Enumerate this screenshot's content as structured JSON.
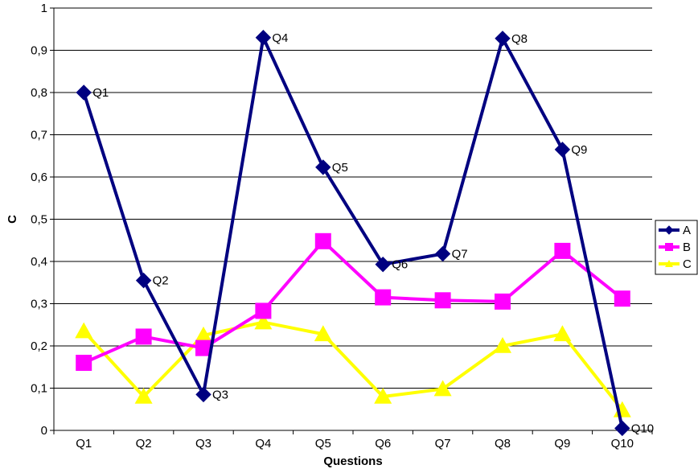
{
  "chart_data": {
    "type": "line",
    "title": "",
    "xlabel": "Questions",
    "ylabel": "C",
    "categories": [
      "Q1",
      "Q2",
      "Q3",
      "Q4",
      "Q5",
      "Q6",
      "Q7",
      "Q8",
      "Q9",
      "Q10"
    ],
    "ylim": [
      0,
      1
    ],
    "yticks": [
      "0",
      "0,1",
      "0,2",
      "0,3",
      "0,4",
      "0,5",
      "0,6",
      "0,7",
      "0,8",
      "0,9",
      "1"
    ],
    "grid": true,
    "legend_position": "right",
    "series": [
      {
        "name": "A",
        "color": "#000080",
        "marker": "diamond",
        "values": [
          0.8,
          0.355,
          0.085,
          0.93,
          0.623,
          0.393,
          0.418,
          0.928,
          0.665,
          0.005
        ],
        "point_labels": [
          "Q1",
          "Q2",
          "Q3",
          "Q4",
          "Q5",
          "Q6",
          "Q7",
          "Q8",
          "Q9",
          "Q10"
        ]
      },
      {
        "name": "B",
        "color": "#FF00FF",
        "marker": "square",
        "values": [
          0.16,
          0.222,
          0.195,
          0.283,
          0.448,
          0.315,
          0.308,
          0.305,
          0.425,
          0.312
        ]
      },
      {
        "name": "C",
        "color": "#FFFF00",
        "marker": "triangle",
        "values": [
          0.235,
          0.08,
          0.225,
          0.256,
          0.228,
          0.08,
          0.098,
          0.2,
          0.228,
          0.048
        ]
      }
    ]
  }
}
